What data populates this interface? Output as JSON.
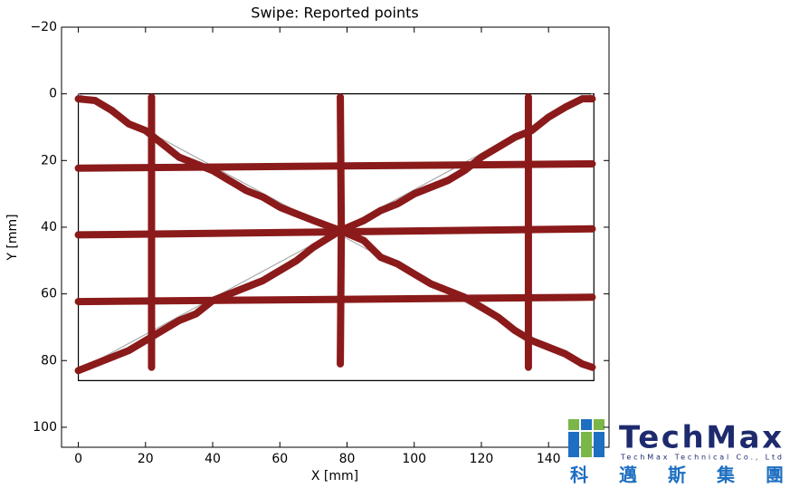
{
  "chart_data": {
    "type": "line",
    "title": "Swipe: Reported points",
    "x_label": "X [mm]",
    "y_label": "Y [mm]",
    "xlim": [
      -5,
      158
    ],
    "ylim": [
      -20,
      106
    ],
    "y_inverted": true,
    "xticks": [
      0,
      20,
      40,
      60,
      80,
      100,
      120,
      140
    ],
    "yticks": [
      {
        "value": -20,
        "label": "−20"
      },
      0,
      20,
      40,
      60,
      80,
      100
    ],
    "series": [
      {
        "color": "#000000",
        "x": [
          0,
          153.5,
          153.5,
          0,
          0
        ],
        "values": [
          0,
          0,
          86,
          86,
          0
        ]
      },
      {
        "color": "#aaaaaa",
        "x": [
          0,
          153
        ],
        "values": [
          0,
          83
        ]
      },
      {
        "color": "#aaaaaa",
        "x": [
          0,
          153
        ],
        "values": [
          83,
          0
        ]
      },
      {
        "color": "#8b1a1a",
        "marker": "o",
        "x": [
          0,
          153
        ],
        "values": [
          22.3,
          21
        ]
      },
      {
        "color": "#8b1a1a",
        "marker": "o",
        "x": [
          0,
          153
        ],
        "values": [
          42.3,
          40.5
        ]
      },
      {
        "color": "#8b1a1a",
        "marker": "o",
        "x": [
          0,
          153
        ],
        "values": [
          62.3,
          61
        ]
      },
      {
        "color": "#8b1a1a",
        "marker": "o",
        "x": [
          21.8,
          21.8
        ],
        "values": [
          1,
          82
        ]
      },
      {
        "color": "#8b1a1a",
        "marker": "o",
        "x": [
          78,
          78.3,
          78
        ],
        "values": [
          1,
          41,
          81
        ]
      },
      {
        "color": "#8b1a1a",
        "marker": "o",
        "x": [
          134,
          134,
          134
        ],
        "values": [
          1,
          40,
          82
        ]
      },
      {
        "color": "#8b1a1a",
        "marker": "o",
        "x": [
          0,
          5,
          10,
          15,
          20,
          25,
          30,
          35,
          40,
          45,
          50,
          55,
          60,
          65,
          70,
          78,
          85,
          90,
          95,
          100,
          105,
          110,
          115,
          120,
          125,
          130,
          135,
          140,
          145,
          150,
          153
        ],
        "values": [
          1.5,
          2,
          5,
          9,
          11,
          15,
          19,
          21,
          23,
          26,
          29,
          31,
          34,
          36,
          38,
          41,
          44,
          49,
          51,
          54,
          57,
          59,
          61,
          64,
          67,
          71,
          74,
          76,
          78,
          81,
          82
        ]
      },
      {
        "color": "#8b1a1a",
        "marker": "o",
        "x": [
          0,
          5,
          10,
          15,
          20,
          25,
          30,
          35,
          40,
          45,
          50,
          55,
          60,
          65,
          70,
          78,
          85,
          90,
          95,
          100,
          105,
          110,
          115,
          120,
          125,
          130,
          135,
          140,
          145,
          150,
          153
        ],
        "values": [
          83,
          81,
          79,
          77,
          74,
          71,
          68,
          66,
          62,
          60,
          58,
          56,
          53,
          50,
          46,
          41,
          38,
          35,
          33,
          30,
          28,
          26,
          23,
          19,
          16,
          13,
          11,
          7,
          4,
          1.5,
          1.5
        ]
      }
    ]
  },
  "logo": {
    "name": "TechMax",
    "subtitle": "TechMax Technical Co., Ltd",
    "chinese": [
      "科",
      "邁",
      "斯",
      "集",
      "團"
    ]
  }
}
